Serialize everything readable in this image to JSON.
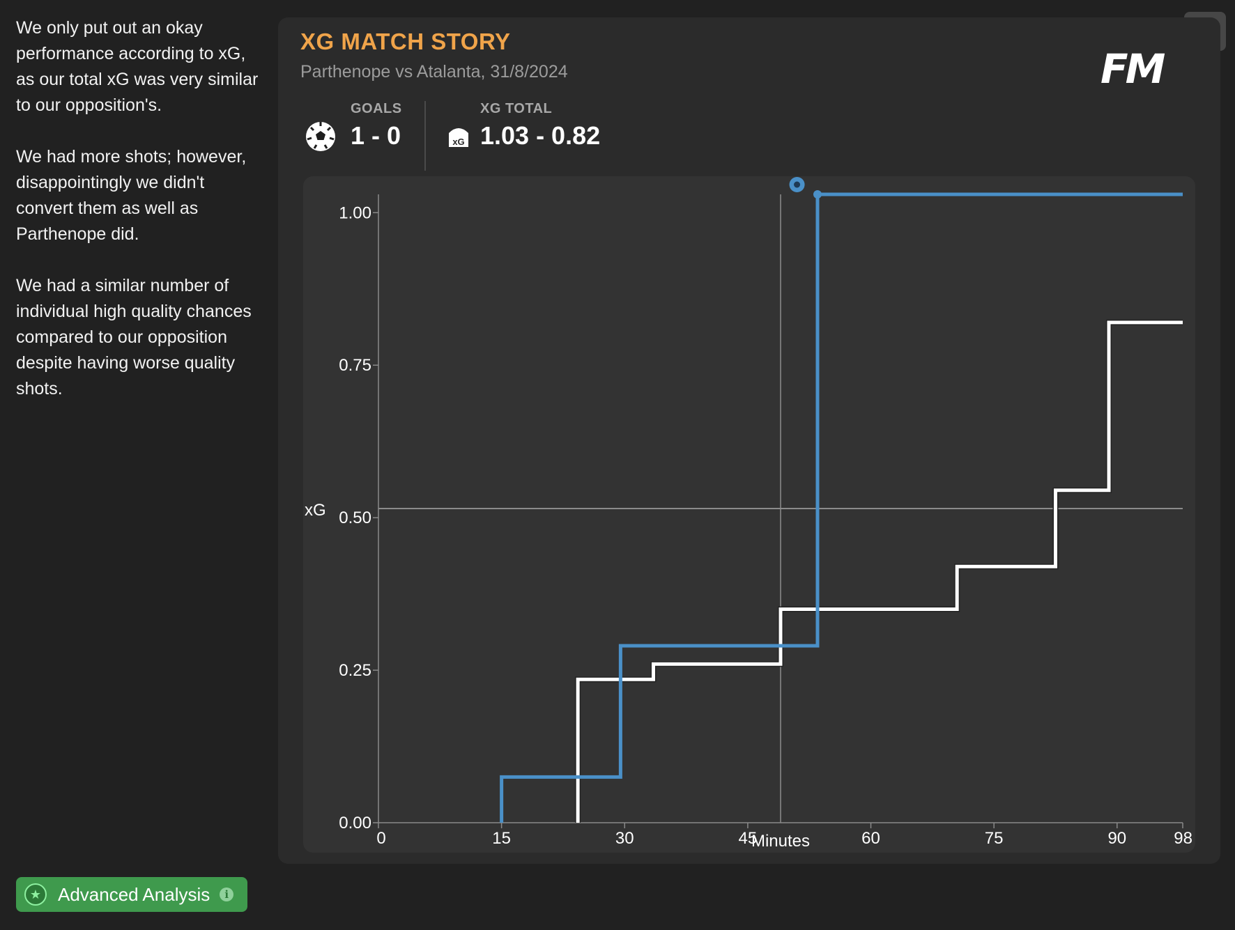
{
  "sidebar": {
    "paragraphs": [
      "We only put out an okay performance according to xG, as our total xG was very similar to our opposition's.",
      "We had more shots; however, disappointingly we didn't convert them as well as Parthenope did.",
      "We had a similar number of individual high quality chances compared to our opposition despite having worse quality shots."
    ],
    "advanced_button": "Advanced Analysis"
  },
  "card": {
    "title": "XG MATCH STORY",
    "subtitle": "Parthenope vs Atalanta, 31/8/2024",
    "logo": "FM",
    "goals_label": "GOALS",
    "goals_value": "1 - 0",
    "xg_label": "XG TOTAL",
    "xg_value": "1.03 - 0.82",
    "xg_icon_text": "xG"
  },
  "colors": {
    "accent": "#f0a44a",
    "home_series": "#4a90c8",
    "away_series": "#ffffff",
    "button_green": "#3f9a4d"
  },
  "chart_data": {
    "type": "line",
    "title": "XG MATCH STORY",
    "xlabel": "Minutes",
    "ylabel": "xG",
    "xlim": [
      0,
      98
    ],
    "ylim": [
      0,
      1.03
    ],
    "xticks": [
      0,
      15,
      30,
      45,
      60,
      75,
      90,
      98
    ],
    "yticks": [
      0.0,
      0.25,
      0.5,
      0.75,
      1.0
    ],
    "ytick_labels": [
      "0.00",
      "0.25",
      "0.50",
      "0.75",
      "1.00"
    ],
    "reference_lines": {
      "x": 49,
      "y": 0.515
    },
    "goal_markers": [
      {
        "series": "Parthenope",
        "minute": 51
      }
    ],
    "series": [
      {
        "name": "Parthenope",
        "step": true,
        "x": [
          15,
          15,
          29.5,
          29.5,
          53.5,
          53.5,
          98
        ],
        "y": [
          0.0,
          0.075,
          0.075,
          0.29,
          0.29,
          1.03,
          1.03
        ]
      },
      {
        "name": "Atalanta",
        "step": true,
        "x": [
          24.3,
          24.3,
          33.5,
          33.5,
          49,
          49,
          70.5,
          70.5,
          82.5,
          82.5,
          89,
          89,
          98
        ],
        "y": [
          0.0,
          0.235,
          0.235,
          0.26,
          0.26,
          0.35,
          0.35,
          0.42,
          0.42,
          0.545,
          0.545,
          0.82,
          0.82
        ]
      }
    ]
  }
}
